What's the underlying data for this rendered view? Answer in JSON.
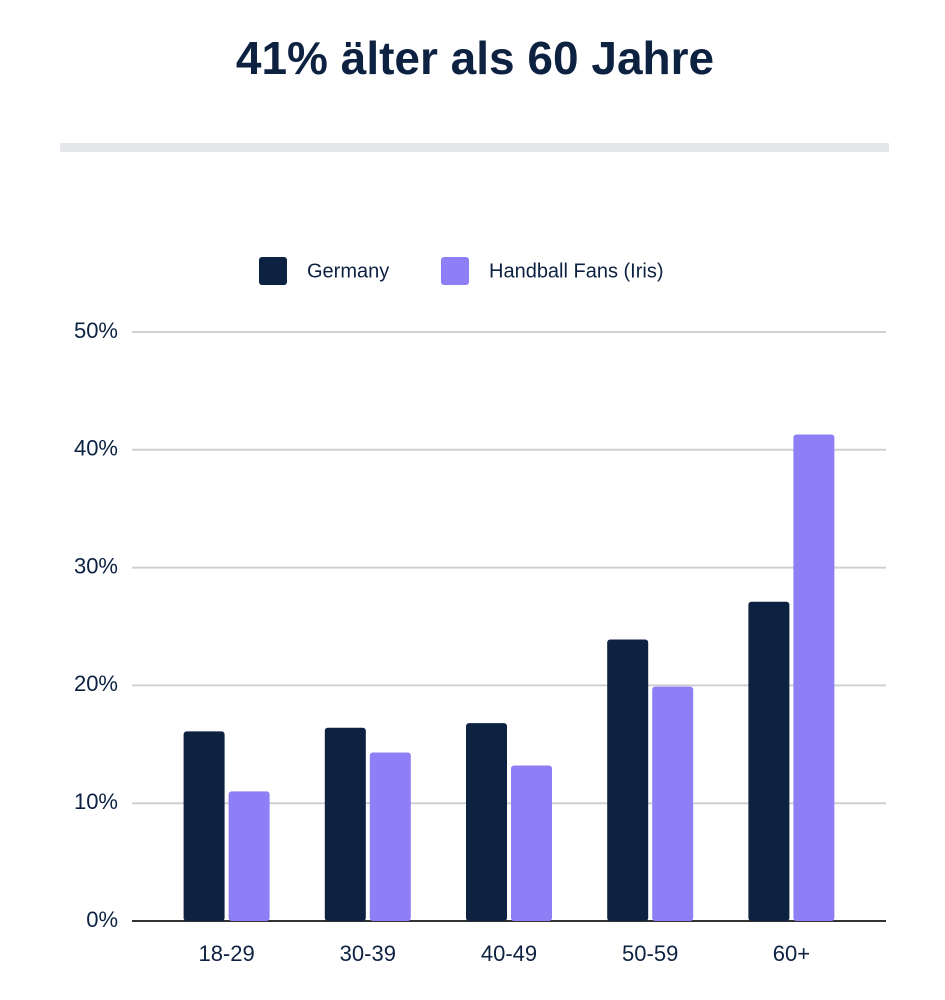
{
  "chart_data": {
    "type": "bar",
    "title": "41% älter als 60 Jahre",
    "categories": [
      "18-29",
      "30-39",
      "40-49",
      "50-59",
      "60+"
    ],
    "series": [
      {
        "name": "Germany",
        "color": "#0d2141",
        "values": [
          16.1,
          16.4,
          16.8,
          23.9,
          27.1
        ]
      },
      {
        "name": "Handball Fans (Iris)",
        "color": "#8f7ff7",
        "values": [
          11.0,
          14.3,
          13.2,
          19.9,
          41.3
        ]
      }
    ],
    "ylim": [
      0,
      50
    ],
    "yticks": [
      {
        "value": 0,
        "label": "0%"
      },
      {
        "value": 10,
        "label": "10%"
      },
      {
        "value": 20,
        "label": "20%"
      },
      {
        "value": 30,
        "label": "30%"
      },
      {
        "value": 40,
        "label": "40%"
      },
      {
        "value": 50,
        "label": "50%"
      }
    ],
    "grid": true
  }
}
